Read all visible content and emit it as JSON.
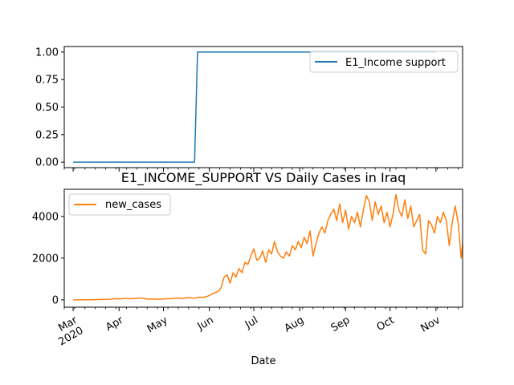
{
  "chart_data": [
    {
      "type": "line",
      "title": "",
      "xlabel": "",
      "ylabel": "",
      "ylim": [
        -0.05,
        1.05
      ],
      "yticks": [
        "0.00",
        "0.25",
        "0.50",
        "0.75",
        "1.00"
      ],
      "legend": "top-right",
      "series": [
        {
          "name": "E1_Income support",
          "color": "#1f77b4",
          "points": [
            [
              "2020-03-01",
              0
            ],
            [
              "2020-05-22",
              0
            ],
            [
              "2020-05-24",
              1
            ],
            [
              "2020-11-01",
              1
            ]
          ]
        }
      ]
    },
    {
      "type": "line",
      "title": "E1_INCOME_SUPPORT VS Daily Cases in Iraq",
      "xlabel": "Date",
      "ylabel": "",
      "ylim": [
        -350,
        5300
      ],
      "yticks": [
        "0",
        "2000",
        "4000"
      ],
      "legend": "top-left",
      "series": [
        {
          "name": "new_cases",
          "color": "#ff7f0e",
          "points": [
            [
              "2020-03-01",
              2
            ],
            [
              "2020-03-05",
              5
            ],
            [
              "2020-03-10",
              8
            ],
            [
              "2020-03-15",
              12
            ],
            [
              "2020-03-20",
              20
            ],
            [
              "2020-03-25",
              30
            ],
            [
              "2020-03-29",
              60
            ],
            [
              "2020-04-02",
              45
            ],
            [
              "2020-04-05",
              80
            ],
            [
              "2020-04-08",
              55
            ],
            [
              "2020-04-12",
              70
            ],
            [
              "2020-04-16",
              90
            ],
            [
              "2020-04-20",
              40
            ],
            [
              "2020-04-24",
              45
            ],
            [
              "2020-04-28",
              30
            ],
            [
              "2020-05-02",
              50
            ],
            [
              "2020-05-06",
              60
            ],
            [
              "2020-05-10",
              90
            ],
            [
              "2020-05-14",
              70
            ],
            [
              "2020-05-18",
              110
            ],
            [
              "2020-05-22",
              80
            ],
            [
              "2020-05-25",
              130
            ],
            [
              "2020-05-28",
              120
            ],
            [
              "2020-05-31",
              180
            ],
            [
              "2020-06-03",
              280
            ],
            [
              "2020-06-05",
              350
            ],
            [
              "2020-06-07",
              400
            ],
            [
              "2020-06-09",
              600
            ],
            [
              "2020-06-11",
              1100
            ],
            [
              "2020-06-13",
              1200
            ],
            [
              "2020-06-15",
              800
            ],
            [
              "2020-06-17",
              1300
            ],
            [
              "2020-06-19",
              1100
            ],
            [
              "2020-06-21",
              1500
            ],
            [
              "2020-06-23",
              1300
            ],
            [
              "2020-06-25",
              1800
            ],
            [
              "2020-06-27",
              1700
            ],
            [
              "2020-06-29",
              2100
            ],
            [
              "2020-07-01",
              2450
            ],
            [
              "2020-07-03",
              1900
            ],
            [
              "2020-07-05",
              2000
            ],
            [
              "2020-07-07",
              2350
            ],
            [
              "2020-07-09",
              1800
            ],
            [
              "2020-07-11",
              2400
            ],
            [
              "2020-07-13",
              2200
            ],
            [
              "2020-07-15",
              2800
            ],
            [
              "2020-07-17",
              2300
            ],
            [
              "2020-07-19",
              2100
            ],
            [
              "2020-07-21",
              2000
            ],
            [
              "2020-07-23",
              2300
            ],
            [
              "2020-07-25",
              2100
            ],
            [
              "2020-07-27",
              2600
            ],
            [
              "2020-07-29",
              2400
            ],
            [
              "2020-07-31",
              2800
            ],
            [
              "2020-08-02",
              2500
            ],
            [
              "2020-08-04",
              3000
            ],
            [
              "2020-08-06",
              2700
            ],
            [
              "2020-08-08",
              3300
            ],
            [
              "2020-08-10",
              2100
            ],
            [
              "2020-08-12",
              2700
            ],
            [
              "2020-08-14",
              3200
            ],
            [
              "2020-08-16",
              3500
            ],
            [
              "2020-08-18",
              3200
            ],
            [
              "2020-08-20",
              3800
            ],
            [
              "2020-08-22",
              4100
            ],
            [
              "2020-08-24",
              4350
            ],
            [
              "2020-08-26",
              3800
            ],
            [
              "2020-08-28",
              4600
            ],
            [
              "2020-08-30",
              3700
            ],
            [
              "2020-09-01",
              4300
            ],
            [
              "2020-09-03",
              3400
            ],
            [
              "2020-09-05",
              4000
            ],
            [
              "2020-09-07",
              3700
            ],
            [
              "2020-09-09",
              4200
            ],
            [
              "2020-09-11",
              3500
            ],
            [
              "2020-09-13",
              4300
            ],
            [
              "2020-09-15",
              5000
            ],
            [
              "2020-09-17",
              4700
            ],
            [
              "2020-09-19",
              3800
            ],
            [
              "2020-09-21",
              4700
            ],
            [
              "2020-09-23",
              4100
            ],
            [
              "2020-09-25",
              4500
            ],
            [
              "2020-09-27",
              3700
            ],
            [
              "2020-09-29",
              4200
            ],
            [
              "2020-10-01",
              3500
            ],
            [
              "2020-10-03",
              4100
            ],
            [
              "2020-10-05",
              5050
            ],
            [
              "2020-10-07",
              4300
            ],
            [
              "2020-10-09",
              4000
            ],
            [
              "2020-10-11",
              4800
            ],
            [
              "2020-10-13",
              3900
            ],
            [
              "2020-10-15",
              4500
            ],
            [
              "2020-10-17",
              3500
            ],
            [
              "2020-10-19",
              3800
            ],
            [
              "2020-10-21",
              4100
            ],
            [
              "2020-10-23",
              2400
            ],
            [
              "2020-10-25",
              2200
            ],
            [
              "2020-10-27",
              3800
            ],
            [
              "2020-10-29",
              3600
            ],
            [
              "2020-10-31",
              3200
            ],
            [
              "2020-11-02",
              4000
            ],
            [
              "2020-11-04",
              3700
            ],
            [
              "2020-11-06",
              4200
            ],
            [
              "2020-11-08",
              3800
            ],
            [
              "2020-11-10",
              2600
            ],
            [
              "2020-11-12",
              3700
            ],
            [
              "2020-11-14",
              4500
            ],
            [
              "2020-11-16",
              3700
            ],
            [
              "2020-11-18",
              2000
            ],
            [
              "2020-11-19",
              2700
            ]
          ]
        }
      ]
    }
  ],
  "x_axis": {
    "label": "Date",
    "range": [
      "2020-02-24",
      "2020-11-19"
    ],
    "ticks": [
      {
        "date": "2020-03-01",
        "label": "Mar",
        "sublabel": "2020"
      },
      {
        "date": "2020-04-01",
        "label": "Apr",
        "sublabel": ""
      },
      {
        "date": "2020-05-01",
        "label": "May",
        "sublabel": ""
      },
      {
        "date": "2020-06-01",
        "label": "Jun",
        "sublabel": ""
      },
      {
        "date": "2020-07-01",
        "label": "Jul",
        "sublabel": ""
      },
      {
        "date": "2020-08-01",
        "label": "Aug",
        "sublabel": ""
      },
      {
        "date": "2020-09-01",
        "label": "Sep",
        "sublabel": ""
      },
      {
        "date": "2020-10-01",
        "label": "Oct",
        "sublabel": ""
      },
      {
        "date": "2020-11-01",
        "label": "Nov",
        "sublabel": ""
      }
    ]
  }
}
